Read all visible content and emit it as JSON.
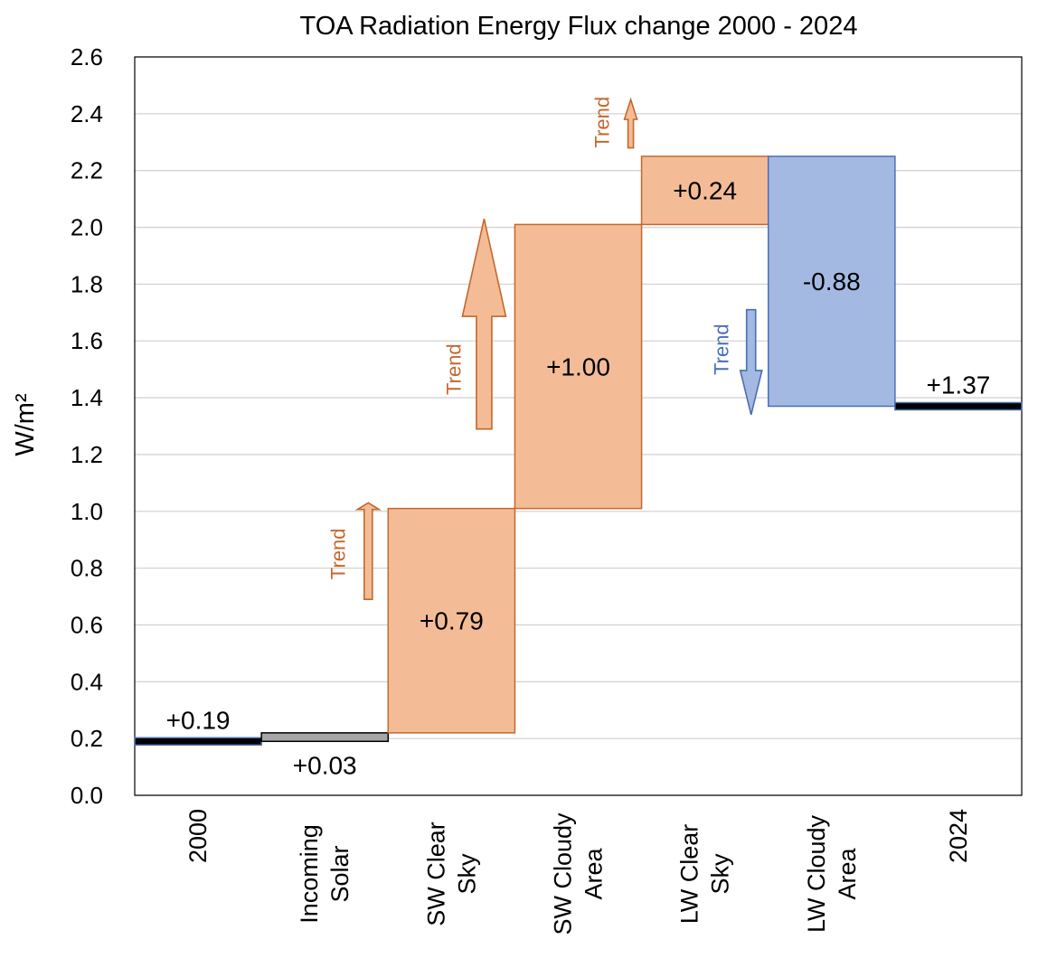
{
  "chart_data": {
    "type": "waterfall",
    "title": "TOA Radiation Energy Flux change 2000 - 2024",
    "ylabel": "W/m²",
    "ylim": [
      0,
      2.6
    ],
    "yticks": [
      "0.0",
      "0.2",
      "0.4",
      "0.6",
      "0.8",
      "1.0",
      "1.2",
      "1.4",
      "1.6",
      "1.8",
      "2.0",
      "2.2",
      "2.4",
      "2.6"
    ],
    "grid": true,
    "categories": [
      [
        "2000"
      ],
      [
        "Incoming",
        "Solar"
      ],
      [
        "SW Clear",
        "Sky"
      ],
      [
        "SW Cloudy",
        "Area"
      ],
      [
        "LW Clear",
        "Sky"
      ],
      [
        "LW Cloudy",
        "Area"
      ],
      [
        "2024"
      ]
    ],
    "bars": [
      {
        "kind": "total",
        "base": 0,
        "value": 0.19,
        "label": "+0.19",
        "color": "#000000"
      },
      {
        "kind": "delta",
        "base": 0.19,
        "value": 0.03,
        "label": "+0.03",
        "color": "#a6a6a6"
      },
      {
        "kind": "delta",
        "base": 0.22,
        "value": 0.79,
        "label": "+0.79",
        "color": "#f4bc96"
      },
      {
        "kind": "delta",
        "base": 1.01,
        "value": 1.0,
        "label": "+1.00",
        "color": "#f4bc96"
      },
      {
        "kind": "delta",
        "base": 2.01,
        "value": 0.24,
        "label": "+0.24",
        "color": "#f4bc96"
      },
      {
        "kind": "delta",
        "base": 2.25,
        "value": -0.88,
        "label": "-0.88",
        "color": "#a3b9e1"
      },
      {
        "kind": "total",
        "base": 0,
        "value": 1.37,
        "label": "+1.37",
        "color": "#000000"
      }
    ],
    "annotations": [
      {
        "text": "Trend",
        "direction": "up",
        "color": "#c5672b"
      },
      {
        "text": "Trend",
        "direction": "up",
        "color": "#c5672b"
      },
      {
        "text": "Trend",
        "direction": "up",
        "color": "#c5672b"
      },
      {
        "text": "Trend",
        "direction": "down",
        "color": "#4a6fb5"
      }
    ],
    "colors": {
      "increase": "#f4bc96",
      "increase_edge": "#c5672b",
      "decrease": "#a3b9e1",
      "decrease_edge": "#4a6fb5",
      "solar": "#a6a6a6",
      "total": "#000000"
    }
  }
}
